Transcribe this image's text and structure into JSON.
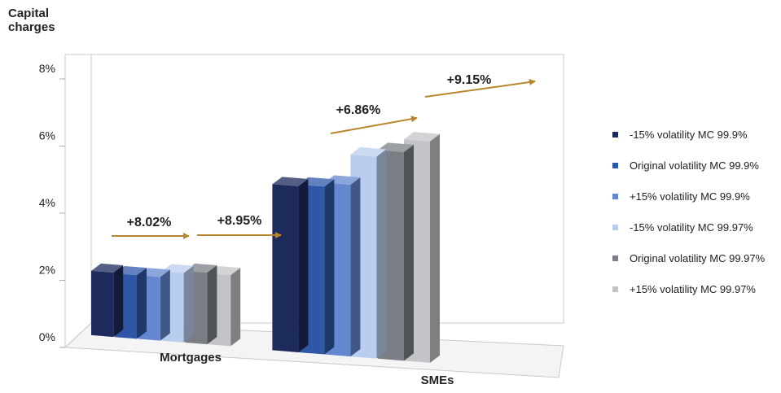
{
  "chart_data": {
    "type": "bar",
    "ylabel": "Capital charges",
    "ylim": [
      0,
      8
    ],
    "yticks": [
      "0%",
      "2%",
      "4%",
      "6%",
      "8%"
    ],
    "categories": [
      "Mortgages",
      "SMEs"
    ],
    "series": [
      {
        "name": "-15% volatility MC 99.9%",
        "color": "#1c2a5c",
        "values": [
          1.82,
          4.85
        ]
      },
      {
        "name": "Original volatility MC 99.9%",
        "color": "#2f57a8",
        "values": [
          1.8,
          4.9
        ]
      },
      {
        "name": "+15% volatility MC 99.9%",
        "color": "#6488cf",
        "values": [
          1.8,
          5.02
        ]
      },
      {
        "name": "-15% volatility MC 99.97%",
        "color": "#b9cdee",
        "values": [
          1.97,
          5.92
        ]
      },
      {
        "name": "Original volatility MC 99.97%",
        "color": "#7b7f85",
        "values": [
          2.04,
          6.12
        ]
      },
      {
        "name": "+15% volatility MC 99.97%",
        "color": "#c3c4c7",
        "values": [
          2.02,
          6.5
        ]
      }
    ],
    "annotations": [
      {
        "category": "Mortgages",
        "text": "+8.02%"
      },
      {
        "category": "Mortgages",
        "text": "+8.95%"
      },
      {
        "category": "SMEs",
        "text": "+6.86%"
      },
      {
        "category": "SMEs",
        "text": "+9.15%"
      }
    ],
    "arrow_color": "#b8862e",
    "grid": false,
    "legend_position": "right"
  }
}
